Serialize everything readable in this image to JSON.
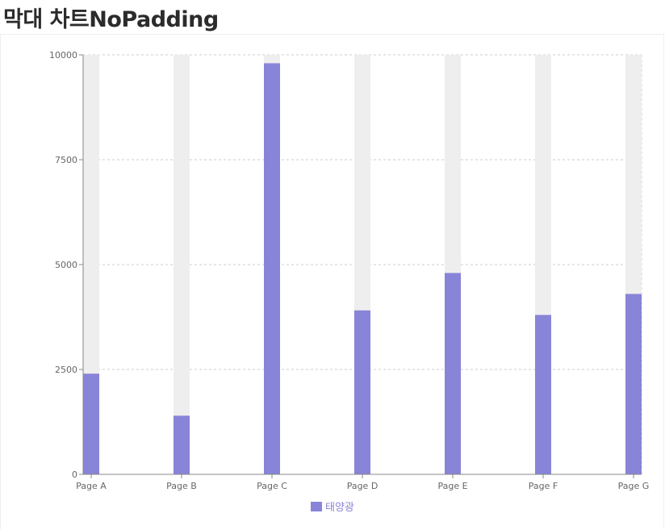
{
  "page": {
    "title": "막대 차트NoPadding"
  },
  "chart_data": {
    "type": "bar",
    "categories": [
      "Page A",
      "Page B",
      "Page C",
      "Page D",
      "Page E",
      "Page F",
      "Page G"
    ],
    "series": [
      {
        "name": "태양광",
        "values": [
          2400,
          1398,
          9800,
          3908,
          4800,
          3800,
          4300
        ],
        "color": "#8884d8"
      }
    ],
    "background_bar_color": "#eeeeee",
    "ylim": [
      0,
      10000
    ],
    "yticks": [
      0,
      2500,
      5000,
      7500,
      10000
    ],
    "xlabel": "",
    "ylabel": "",
    "grid": true,
    "legend_position": "bottom-center"
  }
}
